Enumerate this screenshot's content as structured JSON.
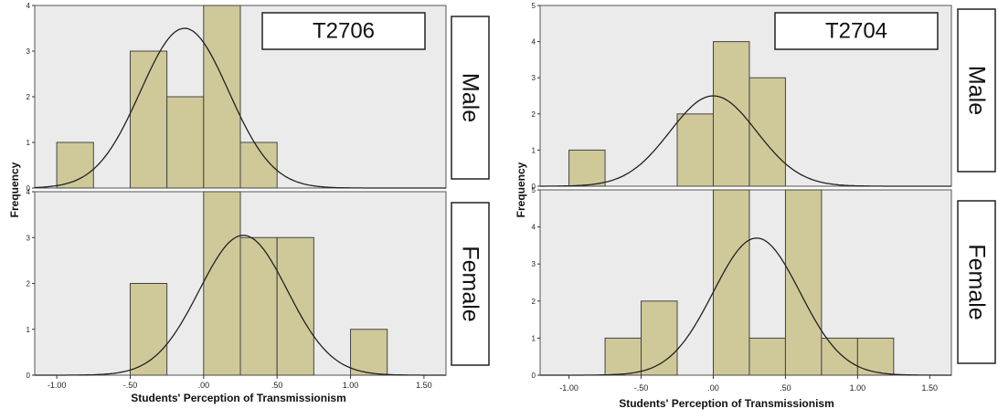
{
  "chart_data": [
    {
      "type": "bar",
      "title": "T2706",
      "xlabel": "Students' Perception of Transmissionism",
      "ylabel": "Frequency",
      "x_ticks": [
        "-1.00",
        "-.50",
        ".00",
        ".50",
        "1.00",
        "1.50"
      ],
      "bin_width": 0.25,
      "xlim": [
        -1.15,
        1.65
      ],
      "panels": [
        {
          "name": "Male",
          "ylim": [
            0,
            4
          ],
          "y_ticks": [
            "0",
            "1",
            "2",
            "3",
            "4"
          ],
          "bins": [
            {
              "start": -1.0,
              "value": 1
            },
            {
              "start": -0.5,
              "value": 3
            },
            {
              "start": -0.25,
              "value": 2
            },
            {
              "start": 0.0,
              "value": 4
            },
            {
              "start": 0.25,
              "value": 1
            }
          ],
          "normal_curve": {
            "mean": -0.13,
            "peak": 3.5
          }
        },
        {
          "name": "Female",
          "ylim": [
            0,
            4
          ],
          "y_ticks": [
            "0",
            "1",
            "2",
            "3",
            "4"
          ],
          "bins": [
            {
              "start": -0.5,
              "value": 2
            },
            {
              "start": 0.0,
              "value": 4
            },
            {
              "start": 0.25,
              "value": 3
            },
            {
              "start": 0.5,
              "value": 3
            },
            {
              "start": 1.0,
              "value": 1
            }
          ],
          "normal_curve": {
            "mean": 0.27,
            "peak": 3.05
          }
        }
      ]
    },
    {
      "type": "bar",
      "title": "T2704",
      "xlabel": "Students' Perception of Transmissionism",
      "ylabel": "Frequency",
      "x_ticks": [
        "-1.00",
        "-.50",
        ".00",
        ".50",
        "1.00",
        "1.50"
      ],
      "bin_width": 0.25,
      "xlim": [
        -1.2,
        1.65
      ],
      "panels": [
        {
          "name": "Male",
          "ylim": [
            0,
            5
          ],
          "y_ticks": [
            "0",
            "1",
            "2",
            "3",
            "4",
            "5"
          ],
          "bins": [
            {
              "start": -1.0,
              "value": 1
            },
            {
              "start": -0.25,
              "value": 2
            },
            {
              "start": 0.0,
              "value": 4
            },
            {
              "start": 0.25,
              "value": 3
            }
          ],
          "normal_curve": {
            "mean": 0.0,
            "peak": 2.5
          }
        },
        {
          "name": "Female",
          "ylim": [
            0,
            5
          ],
          "y_ticks": [
            "0",
            "1",
            "2",
            "3",
            "4",
            "5"
          ],
          "bins": [
            {
              "start": -0.75,
              "value": 1
            },
            {
              "start": -0.5,
              "value": 2
            },
            {
              "start": 0.0,
              "value": 5
            },
            {
              "start": 0.25,
              "value": 1
            },
            {
              "start": 0.5,
              "value": 5
            },
            {
              "start": 0.75,
              "value": 1
            },
            {
              "start": 1.0,
              "value": 1
            }
          ],
          "normal_curve": {
            "mean": 0.3,
            "peak": 3.7
          }
        }
      ]
    }
  ]
}
